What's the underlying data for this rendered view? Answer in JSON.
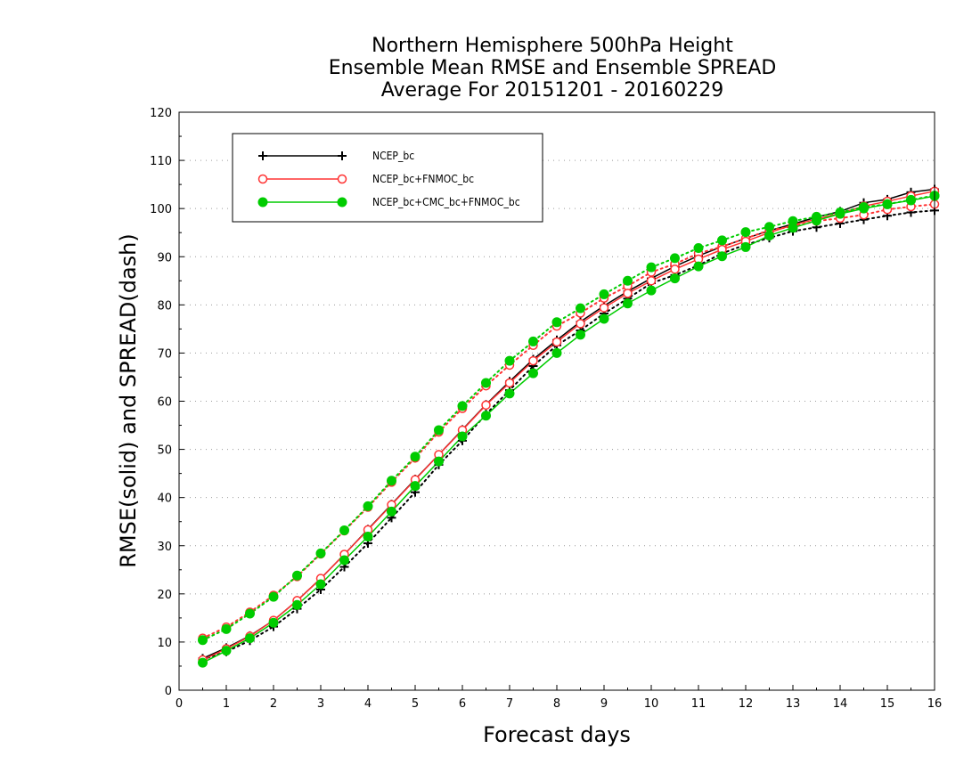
{
  "chart_data": {
    "type": "line",
    "title": [
      "Northern Hemisphere 500hPa Height",
      "Ensemble Mean RMSE and Ensemble SPREAD",
      "Average For 20151201 - 20160229"
    ],
    "xlabel": "Forecast days",
    "ylabel": "RMSE(solid) and SPREAD(dash)",
    "xlim": [
      0,
      16
    ],
    "ylim": [
      0,
      120
    ],
    "xticks": [
      0,
      1,
      2,
      3,
      4,
      5,
      6,
      7,
      8,
      9,
      10,
      11,
      12,
      13,
      14,
      15,
      16
    ],
    "yticks": [
      0,
      10,
      20,
      30,
      40,
      50,
      60,
      70,
      80,
      90,
      100,
      110,
      120
    ],
    "grid": "horizontal dotted",
    "legend_position": "top-left",
    "x": [
      0.5,
      1,
      1.5,
      2,
      2.5,
      3,
      3.5,
      4,
      4.5,
      5,
      5.5,
      6,
      6.5,
      7,
      7.5,
      8,
      8.5,
      9,
      9.5,
      10,
      10.5,
      11,
      11.5,
      12,
      12.5,
      13,
      13.5,
      14,
      14.5,
      15,
      15.5,
      16
    ],
    "series": [
      {
        "name": "NCEP_bc",
        "color": "#000000",
        "marker": "plus",
        "rmse": [
          6.6,
          8.8,
          11.3,
          14.5,
          18.6,
          23.2,
          28.2,
          33.4,
          38.6,
          43.8,
          48.9,
          54.1,
          59.3,
          64.1,
          68.7,
          72.7,
          76.5,
          79.8,
          82.8,
          85.5,
          88.0,
          90.2,
          92.1,
          93.8,
          95.4,
          96.8,
          98.2,
          99.4,
          101.2,
          101.9,
          103.4,
          104.0
        ],
        "spread": [
          6.4,
          8.0,
          10.3,
          13.2,
          16.9,
          20.9,
          25.6,
          30.5,
          35.8,
          41.1,
          46.8,
          51.8,
          57.3,
          62.3,
          67.3,
          71.6,
          74.7,
          78.2,
          81.3,
          84.5,
          86.2,
          88.2,
          90.7,
          92.5,
          93.9,
          95.3,
          96.1,
          96.9,
          97.7,
          98.5,
          99.2,
          99.6
        ]
      },
      {
        "name": "NCEP_bc+FNMOC_bc",
        "color": "#ff3333",
        "marker": "open-circle",
        "rmse": [
          6.3,
          8.6,
          11.2,
          14.5,
          18.6,
          23.2,
          28.2,
          33.3,
          38.5,
          43.7,
          48.9,
          54.0,
          59.2,
          63.8,
          68.4,
          72.3,
          76.1,
          79.4,
          82.4,
          85.0,
          87.4,
          89.5,
          91.5,
          93.2,
          95.0,
          96.6,
          97.8,
          99.0,
          100.5,
          101.5,
          102.6,
          103.6
        ],
        "spread": [
          10.8,
          13.1,
          16.2,
          19.7,
          23.6,
          28.3,
          33.1,
          38.0,
          43.2,
          48.2,
          53.6,
          58.5,
          63.2,
          67.5,
          71.6,
          75.6,
          78.3,
          81.4,
          83.9,
          86.8,
          88.5,
          90.7,
          92.1,
          93.8,
          95.5,
          96.3,
          97.4,
          98.0,
          98.7,
          99.8,
          100.4,
          100.9
        ]
      },
      {
        "name": "NCEP_bc+CMC_bc+FNMOC_bc",
        "color": "#00cc00",
        "marker": "filled-circle",
        "rmse": [
          5.7,
          8.2,
          10.8,
          14.0,
          17.7,
          22.0,
          27.0,
          31.9,
          37.1,
          42.4,
          47.5,
          52.7,
          57.0,
          61.6,
          65.8,
          70.0,
          73.8,
          77.1,
          80.3,
          83.0,
          85.5,
          88.0,
          90.1,
          92.0,
          94.4,
          96.0,
          97.5,
          98.9,
          100.0,
          100.9,
          101.7,
          102.6
        ],
        "spread": [
          10.4,
          12.7,
          15.9,
          19.4,
          23.8,
          28.4,
          33.2,
          38.2,
          43.5,
          48.5,
          54.0,
          59.0,
          63.8,
          68.4,
          72.4,
          76.4,
          79.3,
          82.2,
          85.0,
          87.8,
          89.7,
          91.8,
          93.4,
          95.1,
          96.2,
          97.4,
          98.3,
          99.2,
          100.3,
          100.9,
          101.8,
          102.7
        ]
      }
    ]
  }
}
